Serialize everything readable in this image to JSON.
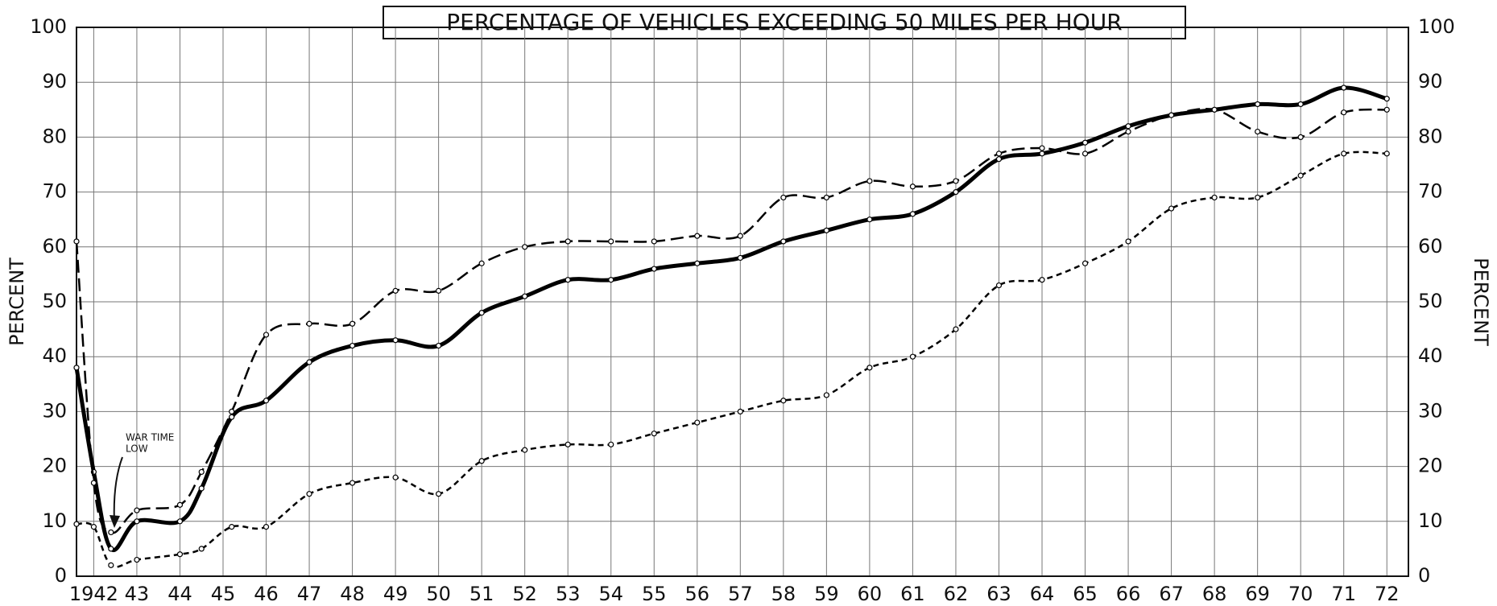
{
  "chart_data": {
    "type": "line",
    "title": "PERCENTAGE OF VEHICLES EXCEEDING 50 MILES PER HOUR",
    "y_label": "PERCENT",
    "y2_label": "PERCENT",
    "annotation": [
      "WAR TIME",
      "LOW"
    ],
    "x": [
      1941.6,
      1942,
      1942.4,
      1943,
      1944,
      1944.5,
      1945.2,
      1946,
      1947,
      1948,
      1949,
      1950,
      1951,
      1952,
      1953,
      1954,
      1955,
      1956,
      1957,
      1958,
      1959,
      1960,
      1961,
      1962,
      1963,
      1964,
      1965,
      1966,
      1967,
      1968,
      1969,
      1970,
      1971,
      1972
    ],
    "series": [
      {
        "color": "#000000",
        "dash": "solid",
        "values": [
          38,
          19,
          5,
          10,
          10,
          16,
          29,
          32,
          39,
          42,
          43,
          42,
          48,
          51,
          54,
          54,
          56,
          57,
          58,
          61,
          63,
          65,
          66,
          70,
          76,
          77,
          79,
          82,
          84,
          85,
          86,
          86,
          89,
          87
        ]
      },
      {
        "color": "#000000",
        "dash": "long",
        "values": [
          61,
          17,
          8,
          12,
          13,
          19,
          30,
          44,
          46,
          46,
          52,
          52,
          57,
          60,
          61,
          61,
          61,
          62,
          62,
          69,
          69,
          72,
          71,
          72,
          77,
          78,
          77,
          81,
          84,
          85,
          81,
          80,
          84.5,
          85
        ]
      },
      {
        "color": "#000000",
        "dash": "short",
        "values": [
          9.5,
          9,
          2,
          3,
          4,
          5,
          9,
          9,
          15,
          17,
          18,
          15,
          21,
          23,
          24,
          24,
          26,
          28,
          30,
          32,
          33,
          38,
          40,
          45,
          53,
          54,
          57,
          61,
          67,
          69,
          69,
          73,
          77,
          77
        ]
      }
    ],
    "xlim": [
      1941.6,
      1972.5
    ],
    "xticks": [
      {
        "value": 1942,
        "label": "1942"
      },
      {
        "value": 1943,
        "label": "43"
      },
      {
        "value": 1944,
        "label": "44"
      },
      {
        "value": 1945,
        "label": "45"
      },
      {
        "value": 1946,
        "label": "46"
      },
      {
        "value": 1947,
        "label": "47"
      },
      {
        "value": 1948,
        "label": "48"
      },
      {
        "value": 1949,
        "label": "49"
      },
      {
        "value": 1950,
        "label": "50"
      },
      {
        "value": 1951,
        "label": "51"
      },
      {
        "value": 1952,
        "label": "52"
      },
      {
        "value": 1953,
        "label": "53"
      },
      {
        "value": 1954,
        "label": "54"
      },
      {
        "value": 1955,
        "label": "55"
      },
      {
        "value": 1956,
        "label": "56"
      },
      {
        "value": 1957,
        "label": "57"
      },
      {
        "value": 1958,
        "label": "58"
      },
      {
        "value": 1959,
        "label": "59"
      },
      {
        "value": 1960,
        "label": "60"
      },
      {
        "value": 1961,
        "label": "61"
      },
      {
        "value": 1962,
        "label": "62"
      },
      {
        "value": 1963,
        "label": "63"
      },
      {
        "value": 1964,
        "label": "64"
      },
      {
        "value": 1965,
        "label": "65"
      },
      {
        "value": 1966,
        "label": "66"
      },
      {
        "value": 1967,
        "label": "67"
      },
      {
        "value": 1968,
        "label": "68"
      },
      {
        "value": 1969,
        "label": "69"
      },
      {
        "value": 1970,
        "label": "70"
      },
      {
        "value": 1971,
        "label": "71"
      },
      {
        "value": 1972,
        "label": "72"
      }
    ],
    "ylim": [
      0,
      100
    ],
    "yticks": [
      0,
      10,
      20,
      30,
      40,
      50,
      60,
      70,
      80,
      90,
      100
    ],
    "y2lim": [
      0,
      100
    ],
    "y2ticks": [
      0,
      10,
      20,
      30,
      40,
      50,
      60,
      70,
      80,
      90,
      100
    ],
    "grid": true
  }
}
